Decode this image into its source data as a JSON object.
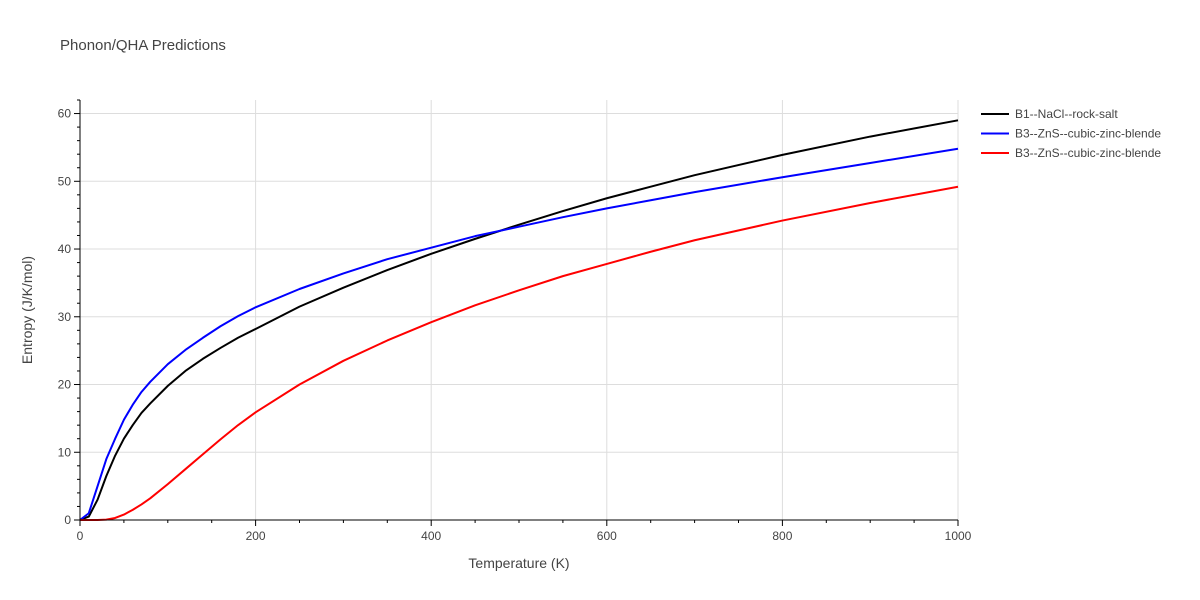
{
  "chart_data": {
    "type": "line",
    "title": "Phonon/QHA Predictions",
    "xlabel": "Temperature (K)",
    "ylabel": "Entropy (J/K/mol)",
    "xlim": [
      0,
      1000
    ],
    "ylim": [
      0,
      62
    ],
    "x_ticks": [
      0,
      200,
      400,
      600,
      800,
      1000
    ],
    "y_ticks": [
      0,
      10,
      20,
      30,
      40,
      50,
      60
    ],
    "grid": true,
    "legend_position": "top-right, outside plot",
    "series": [
      {
        "name": "B1--NaCl--rock-salt",
        "color": "#000000",
        "x": [
          0,
          10,
          20,
          30,
          40,
          50,
          60,
          70,
          80,
          100,
          120,
          140,
          160,
          180,
          200,
          250,
          300,
          350,
          400,
          450,
          500,
          550,
          600,
          650,
          700,
          800,
          900,
          1000
        ],
        "y": [
          0,
          0.5,
          3,
          6.5,
          9.5,
          12,
          14,
          15.8,
          17.2,
          19.8,
          22,
          23.8,
          25.4,
          26.9,
          28.2,
          31.5,
          34.3,
          36.9,
          39.3,
          41.5,
          43.6,
          45.6,
          47.5,
          49.2,
          50.9,
          53.9,
          56.6,
          59
        ]
      },
      {
        "name": "B3--ZnS--cubic-zinc-blende",
        "color": "#0000ff",
        "x": [
          0,
          10,
          20,
          30,
          40,
          50,
          60,
          70,
          80,
          100,
          120,
          140,
          160,
          180,
          200,
          250,
          300,
          350,
          400,
          450,
          500,
          550,
          600,
          650,
          700,
          800,
          900,
          1000
        ],
        "y": [
          0,
          1,
          5,
          9,
          12,
          14.8,
          17,
          18.9,
          20.4,
          23,
          25.1,
          26.9,
          28.6,
          30.1,
          31.4,
          34.1,
          36.4,
          38.5,
          40.2,
          41.9,
          43.3,
          44.7,
          46,
          47.2,
          48.4,
          50.6,
          52.7,
          54.8
        ]
      },
      {
        "name": "B3--ZnS--cubic-zinc-blende",
        "color": "#ff0000",
        "x": [
          0,
          20,
          30,
          40,
          50,
          60,
          70,
          80,
          100,
          120,
          140,
          160,
          180,
          200,
          250,
          300,
          350,
          400,
          450,
          500,
          550,
          600,
          650,
          700,
          800,
          900,
          1000
        ],
        "y": [
          0,
          0,
          0.05,
          0.3,
          0.8,
          1.5,
          2.3,
          3.2,
          5.3,
          7.5,
          9.7,
          11.9,
          14,
          15.9,
          20,
          23.5,
          26.5,
          29.2,
          31.7,
          33.9,
          36,
          37.8,
          39.6,
          41.3,
          44.2,
          46.8,
          49.2
        ]
      }
    ]
  }
}
